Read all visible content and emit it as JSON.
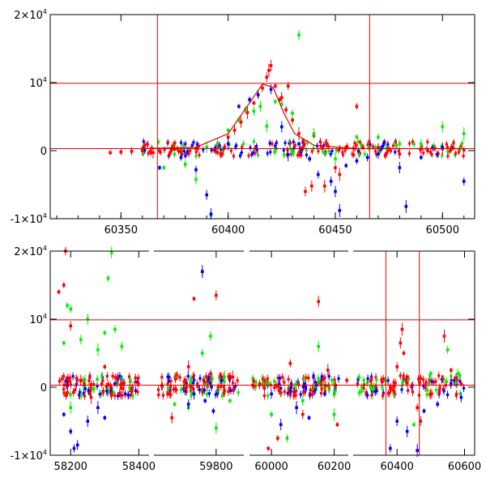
{
  "chart_data": [
    {
      "type": "scatter",
      "title": "",
      "xlabel": "",
      "ylabel": "",
      "xlim": [
        60317,
        60515
      ],
      "ylim": [
        -10000,
        20000
      ],
      "grid": false,
      "x_ticks": [
        {
          "value": 60350,
          "label": "60350"
        },
        {
          "value": 60400,
          "label": "60400"
        },
        {
          "value": 60450,
          "label": "60450"
        },
        {
          "value": 60500,
          "label": "60500"
        }
      ],
      "y_ticks": [
        {
          "value": 20000,
          "base": "2×10",
          "exp": "4"
        },
        {
          "value": 10000,
          "base": "10",
          "exp": "4"
        },
        {
          "value": 0,
          "base": "0",
          "exp": ""
        },
        {
          "value": -10000,
          "base": "-1×10",
          "exp": "4"
        }
      ],
      "reference_lines": {
        "vertical": [
          60367,
          60466
        ],
        "horizontal": [
          9900,
          300
        ]
      },
      "colors": {
        "red": "#ff0000",
        "green": "#00ee00",
        "blue": "#0000ff",
        "line": "#e00000"
      },
      "model_curve": [
        [
          60360,
          300
        ],
        [
          60385,
          500
        ],
        [
          60400,
          2500
        ],
        [
          60410,
          7000
        ],
        [
          60416,
          9800
        ],
        [
          60421,
          9300
        ],
        [
          60426,
          5500
        ],
        [
          60431,
          2500
        ],
        [
          60440,
          800
        ],
        [
          60460,
          300
        ],
        [
          60510,
          300
        ]
      ],
      "series": [
        {
          "color": "red",
          "points": [
            [
              60345,
              -300
            ],
            [
              60350,
              -200
            ],
            [
              60355,
              -100
            ],
            [
              60360,
              0
            ],
            [
              60365,
              -300
            ],
            [
              60375,
              200
            ],
            [
              60385,
              300
            ],
            [
              60395,
              800
            ],
            [
              60400,
              2000
            ],
            [
              60403,
              3000
            ],
            [
              60406,
              4200
            ],
            [
              60409,
              5600
            ],
            [
              60412,
              7000
            ],
            [
              60414,
              8200
            ],
            [
              60416,
              9200
            ],
            [
              60418,
              10800
            ],
            [
              60420,
              12500
            ],
            [
              60419,
              11800
            ],
            [
              60422,
              9500
            ],
            [
              60424,
              7500
            ],
            [
              60427,
              6000
            ],
            [
              60430,
              4500
            ],
            [
              60425,
              7800
            ],
            [
              60433,
              2500
            ],
            [
              60435,
              1500
            ],
            [
              60440,
              2200
            ],
            [
              60443,
              1300
            ],
            [
              60446,
              1000
            ],
            [
              60450,
              -2500
            ],
            [
              60452,
              -3500
            ],
            [
              60455,
              500
            ],
            [
              60460,
              6500
            ],
            [
              60470,
              500
            ],
            [
              60480,
              -500
            ],
            [
              60490,
              200
            ],
            [
              60500,
              300
            ],
            [
              60505,
              400
            ],
            [
              60510,
              100
            ],
            [
              60428,
              9500
            ],
            [
              60436,
              -6000
            ],
            [
              60439,
              -5200
            ],
            [
              60445,
              -5200
            ]
          ]
        },
        {
          "color": "green",
          "points": [
            [
              60370,
              -2500
            ],
            [
              60375,
              -500
            ],
            [
              60380,
              -2000
            ],
            [
              60385,
              -4200
            ],
            [
              60390,
              500
            ],
            [
              60395,
              1000
            ],
            [
              60400,
              3000
            ],
            [
              60405,
              4500
            ],
            [
              60408,
              6000
            ],
            [
              60412,
              5800
            ],
            [
              60415,
              6500
            ],
            [
              60418,
              3600
            ],
            [
              60422,
              7200
            ],
            [
              60425,
              6800
            ],
            [
              60430,
              5500
            ],
            [
              60433,
              17000
            ],
            [
              60440,
              2500
            ],
            [
              60450,
              -1200
            ],
            [
              60460,
              2000
            ],
            [
              60470,
              2000
            ],
            [
              60480,
              1000
            ],
            [
              60490,
              1000
            ],
            [
              60500,
              3500
            ],
            [
              60510,
              2500
            ],
            [
              60392,
              -9500
            ]
          ]
        },
        {
          "color": "blue",
          "points": [
            [
              60368,
              -2500
            ],
            [
              60378,
              -1000
            ],
            [
              60385,
              -2800
            ],
            [
              60390,
              -6500
            ],
            [
              60392,
              -9300
            ],
            [
              60400,
              1000
            ],
            [
              60405,
              6500
            ],
            [
              60410,
              7500
            ],
            [
              60414,
              8200
            ],
            [
              60420,
              9000
            ],
            [
              60425,
              3500
            ],
            [
              60428,
              -600
            ],
            [
              60433,
              1000
            ],
            [
              60438,
              -1200
            ],
            [
              60442,
              -3500
            ],
            [
              60448,
              -4500
            ],
            [
              60450,
              -6000
            ],
            [
              60452,
              -8800
            ],
            [
              60455,
              -2200
            ],
            [
              60460,
              -1500
            ],
            [
              60465,
              -1000
            ],
            [
              60470,
              -500
            ],
            [
              60480,
              -2500
            ],
            [
              60483,
              -8200
            ],
            [
              60490,
              -1000
            ],
            [
              60500,
              500
            ],
            [
              60510,
              -4500
            ]
          ]
        }
      ]
    },
    {
      "type": "scatter",
      "title": "",
      "xlabel": "",
      "ylabel": "",
      "xlim": [
        -1,
        1
      ],
      "ylim": [
        -10000,
        20000
      ],
      "grid": false,
      "segments": [
        {
          "xlim": [
            58140,
            58430
          ],
          "ticks": [
            58200,
            58400
          ],
          "tick_labels": [
            "58200",
            "58400"
          ]
        },
        {
          "xlim": [
            59575,
            59900
          ],
          "ticks": [
            59800
          ],
          "tick_labels": [
            "59800"
          ]
        },
        {
          "xlim": [
            59930,
            60245
          ],
          "ticks": [
            60000,
            60200
          ],
          "tick_labels": [
            "60000",
            "60200"
          ]
        },
        {
          "xlim": [
            60270,
            60630
          ],
          "ticks": [
            60400,
            60600
          ],
          "tick_labels": [
            "60400",
            "60600"
          ]
        }
      ],
      "y_ticks": [
        {
          "value": 20000,
          "base": "2×10",
          "exp": "4"
        },
        {
          "value": 10000,
          "base": "10",
          "exp": "4"
        },
        {
          "value": 0,
          "base": "0",
          "exp": ""
        },
        {
          "value": -10000,
          "base": "-1×10",
          "exp": "4"
        }
      ],
      "reference_lines": {
        "vertical": [
          60367,
          60466
        ],
        "horizontal": [
          9900,
          300
        ]
      },
      "series": [
        {
          "color": "red",
          "points": [
            [
              58165,
              14000
            ],
            [
              58180,
              15000
            ],
            [
              58185,
              20000
            ],
            [
              58200,
              9000
            ],
            [
              58230,
              1000
            ],
            [
              58260,
              -1500
            ],
            [
              58300,
              3000
            ],
            [
              58320,
              -1000
            ],
            [
              58350,
              500
            ],
            [
              58380,
              -500
            ],
            [
              59640,
              -4500
            ],
            [
              59700,
              3000
            ],
            [
              59720,
              13000
            ],
            [
              59750,
              17000
            ],
            [
              59780,
              2000
            ],
            [
              59800,
              13500
            ],
            [
              59830,
              -500
            ],
            [
              59860,
              1500
            ],
            [
              59990,
              -9000
            ],
            [
              60020,
              -7500
            ],
            [
              60060,
              3500
            ],
            [
              60100,
              -4000
            ],
            [
              60150,
              12600
            ],
            [
              60180,
              2500
            ],
            [
              60210,
              -5500
            ],
            [
              60240,
              1000
            ],
            [
              60380,
              0
            ],
            [
              60400,
              3000
            ],
            [
              60410,
              6500
            ],
            [
              60415,
              8500
            ],
            [
              60420,
              5000
            ],
            [
              60430,
              1500
            ],
            [
              60460,
              -3000
            ],
            [
              60470,
              -5000
            ],
            [
              60500,
              -1000
            ],
            [
              60540,
              7500
            ],
            [
              60560,
              2500
            ],
            [
              60590,
              500
            ]
          ]
        },
        {
          "color": "green",
          "points": [
            [
              58180,
              6500
            ],
            [
              58190,
              12000
            ],
            [
              58200,
              11500
            ],
            [
              58230,
              7000
            ],
            [
              58250,
              10000
            ],
            [
              58280,
              5500
            ],
            [
              58300,
              8000
            ],
            [
              58310,
              16000
            ],
            [
              58330,
              8500
            ],
            [
              58350,
              6000
            ],
            [
              58320,
              19800
            ],
            [
              58200,
              -3000
            ],
            [
              59650,
              -2500
            ],
            [
              59700,
              -3000
            ],
            [
              59750,
              5000
            ],
            [
              59780,
              7500
            ],
            [
              59800,
              -6000
            ],
            [
              59830,
              1500
            ],
            [
              59850,
              -2000
            ],
            [
              60000,
              -4000
            ],
            [
              60050,
              -7500
            ],
            [
              60100,
              -2000
            ],
            [
              60150,
              6000
            ],
            [
              60200,
              -4000
            ],
            [
              60450,
              -5500
            ],
            [
              60500,
              2000
            ],
            [
              60550,
              5500
            ],
            [
              60580,
              2000
            ]
          ]
        },
        {
          "color": "blue",
          "points": [
            [
              58180,
              -4000
            ],
            [
              58200,
              -6500
            ],
            [
              58210,
              -9000
            ],
            [
              58220,
              -8500
            ],
            [
              58250,
              -5000
            ],
            [
              58280,
              -3000
            ],
            [
              58300,
              -4500
            ],
            [
              58330,
              500
            ],
            [
              58360,
              -1000
            ],
            [
              59700,
              -2500
            ],
            [
              59720,
              -1000
            ],
            [
              59750,
              17000
            ],
            [
              59760,
              -2000
            ],
            [
              59790,
              -3500
            ],
            [
              59820,
              1000
            ],
            [
              60000,
              -1000
            ],
            [
              60030,
              -5500
            ],
            [
              60080,
              -3000
            ],
            [
              60120,
              -4500
            ],
            [
              60170,
              -1000
            ],
            [
              60380,
              -9000
            ],
            [
              60400,
              -5000
            ],
            [
              60430,
              -6500
            ],
            [
              60460,
              -9300
            ],
            [
              60480,
              -3500
            ],
            [
              60520,
              -2500
            ],
            [
              60560,
              500
            ],
            [
              60590,
              -1500
            ]
          ]
        }
      ]
    }
  ]
}
